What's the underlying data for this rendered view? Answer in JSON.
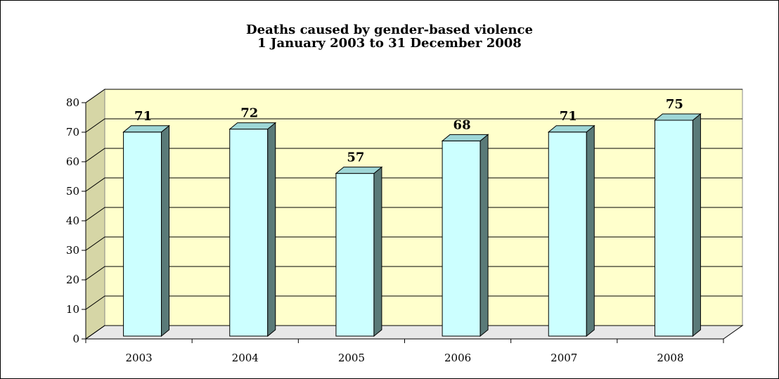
{
  "chart_data": {
    "type": "bar",
    "title_line1": "Deaths caused by gender-based violence",
    "title_line2": "1 January 2003 to 31 December 2008",
    "categories": [
      "2003",
      "2004",
      "2005",
      "2006",
      "2007",
      "2008"
    ],
    "values": [
      71,
      72,
      57,
      68,
      71,
      75
    ],
    "data_labels": [
      "71",
      "72",
      "57",
      "68",
      "71",
      "75"
    ],
    "y_ticks": [
      "0",
      "10",
      "20",
      "30",
      "40",
      "50",
      "60",
      "70",
      "80"
    ],
    "ylim": [
      0,
      80
    ],
    "grid": true,
    "legend": "none",
    "colors": {
      "wall": "#ffffcc",
      "bar_front": "#ccffff",
      "bar_side": "#5a7a78",
      "bar_top": "#9ed6d6",
      "grid": "#000000"
    }
  }
}
